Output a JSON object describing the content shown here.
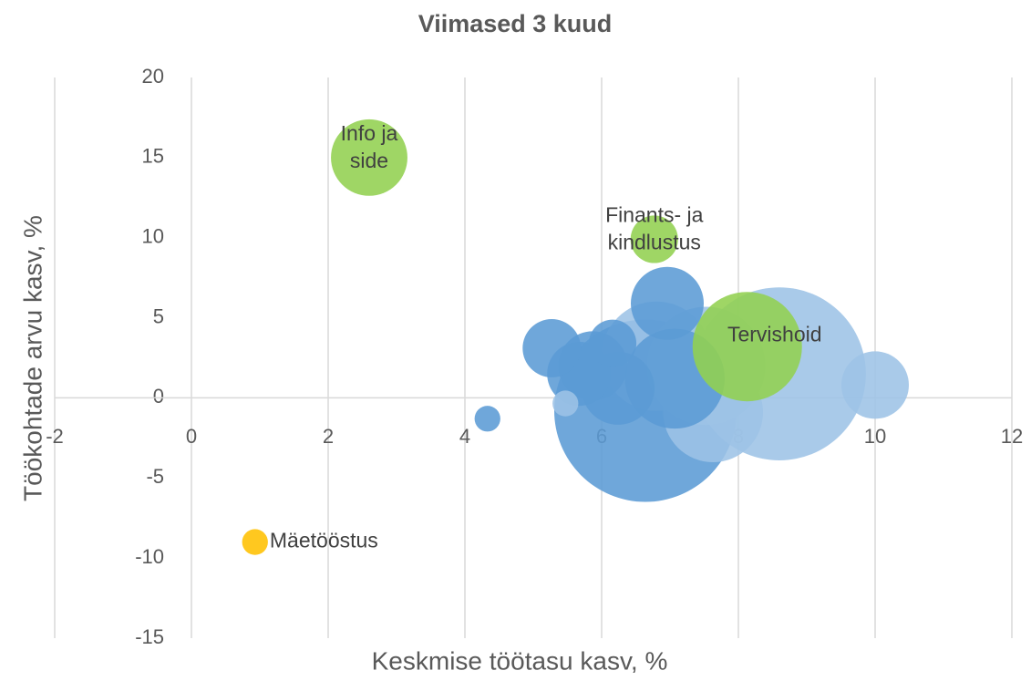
{
  "chart_data": {
    "type": "bubble",
    "title": "Viimased 3 kuud",
    "x_label": "Keskmise töötasu kasv, %",
    "y_label": "Töökohtade arvu kasv, %",
    "xlim": [
      -2,
      12
    ],
    "xticks": [
      -2,
      0,
      2,
      4,
      6,
      8,
      10,
      12
    ],
    "ylim": [
      -15,
      20
    ],
    "yticks": [
      -15,
      -10,
      -5,
      0,
      5,
      10,
      15,
      20
    ],
    "grid": "x",
    "series": [
      {
        "x": [
          6.64,
          8.6,
          7.53,
          6.8,
          7.63,
          7.07,
          8.13,
          6.24,
          6.96,
          5.87,
          5.67,
          10.0,
          5.27,
          6.16,
          2.6,
          6.77,
          4.33,
          5.47,
          0.93
        ],
        "values": [
          -0.8,
          1.5,
          2.0,
          2.6,
          -0.9,
          1.2,
          3.2,
          0.6,
          5.9,
          2.0,
          1.5,
          0.8,
          3.1,
          3.4,
          15.0,
          9.9,
          -1.3,
          -0.35,
          -9.0
        ],
        "sizes": [
          100,
          90,
          42,
          36,
          30,
          30,
          36,
          16,
          16,
          14.4,
          12.3,
          13.7,
          10.2,
          6.8,
          17.6,
          6.8,
          2,
          2,
          2
        ],
        "colors": [
          "#5b9bd5",
          "#9dc3e6",
          "#9dc3e6",
          "#9dc3e6",
          "#9dc3e6",
          "#5b9bd5",
          "#92d050",
          "#5b9bd5",
          "#5b9bd5",
          "#5b9bd5",
          "#5b9bd5",
          "#9dc3e6",
          "#5b9bd5",
          "#5b9bd5",
          "#92d050",
          "#92d050",
          "#5b9bd5",
          "#9dc3e6",
          "#ffc000"
        ],
        "labels": [
          null,
          null,
          null,
          null,
          null,
          null,
          [
            "Tervishoid"
          ],
          null,
          null,
          null,
          null,
          null,
          null,
          null,
          [
            "Info ja",
            "side"
          ],
          [
            "Finants- ja",
            "kindlustus"
          ],
          null,
          null,
          [
            "Mäetööstus"
          ]
        ]
      }
    ]
  }
}
